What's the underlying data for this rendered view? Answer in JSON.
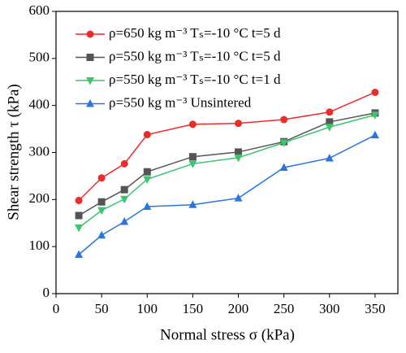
{
  "chart_data": {
    "type": "line",
    "x_label": "Normal stress σ (kPa)",
    "y_label": "Shear strength τ (kPa)",
    "x": [
      25,
      50,
      75,
      100,
      150,
      200,
      250,
      300,
      350
    ],
    "series": [
      {
        "name": "ρ=650 kg m⁻³ Tₛ=-10 °C t=5 d",
        "color": "#ee2b2b",
        "marker": "circle",
        "values": [
          198,
          246,
          276,
          338,
          360,
          362,
          370,
          386,
          428
        ]
      },
      {
        "name": "ρ=550 kg m⁻³ Tₛ=-10 °C t=5 d",
        "color": "#555555",
        "marker": "square",
        "values": [
          166,
          195,
          221,
          259,
          291,
          301,
          323,
          365,
          384
        ]
      },
      {
        "name": "ρ=550 kg m⁻³ Tₛ=-10 °C t=1 d",
        "color": "#3cc46e",
        "marker": "triangle-down",
        "values": [
          140,
          177,
          201,
          243,
          276,
          289,
          321,
          354,
          380
        ]
      },
      {
        "name": "ρ=550 kg m⁻³ Unsintered",
        "color": "#2a76de",
        "marker": "triangle-up",
        "values": [
          83,
          124,
          153,
          185,
          189,
          203,
          268,
          288,
          337
        ]
      }
    ],
    "xlim": [
      0,
      375
    ],
    "xticks": [
      0,
      50,
      100,
      150,
      200,
      250,
      300,
      350
    ],
    "ylim": [
      0,
      600
    ],
    "yticks": [
      0,
      100,
      200,
      300,
      400,
      500,
      600
    ],
    "legend": "upper-left"
  }
}
